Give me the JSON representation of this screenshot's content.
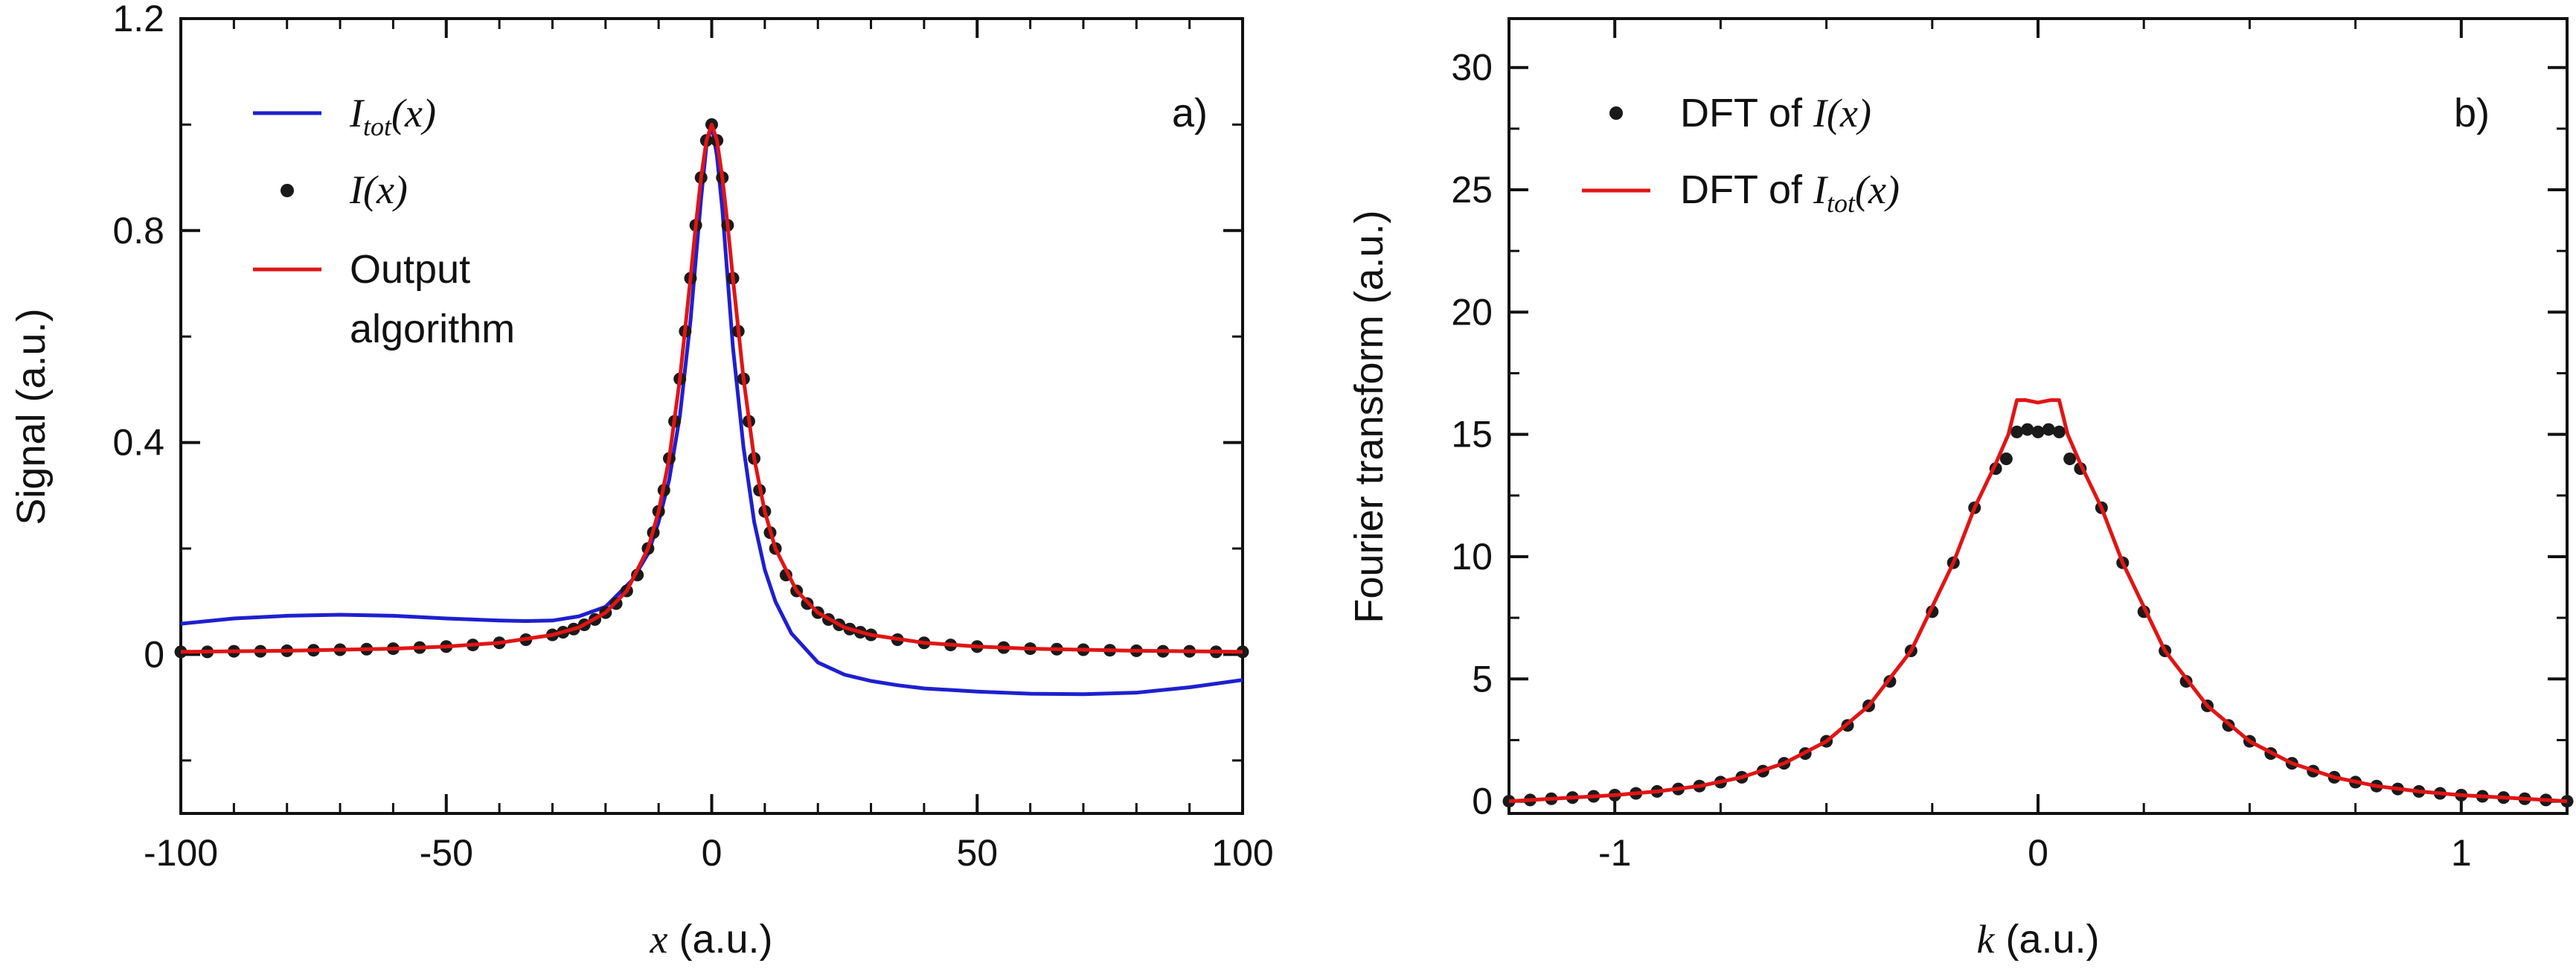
{
  "colors": {
    "blue": "#1f1fd0",
    "red": "#e01515",
    "black": "#1a1a1a"
  },
  "chart_data": [
    {
      "type": "line",
      "panel_label": "a)",
      "ylabel": "Signal (a.u.)",
      "xlabel_var": "x",
      "xlabel_unit": " (a.u.)",
      "xlim": [
        -100,
        100
      ],
      "ylim": [
        -0.3,
        1.2
      ],
      "xticks": [
        -100,
        -50,
        0,
        50,
        100
      ],
      "xtick_labels": [
        "-100",
        "-50",
        "0",
        "50",
        "100"
      ],
      "yticks": [
        0,
        0.4,
        0.8,
        1.2
      ],
      "ytick_labels": [
        "0",
        "0.4",
        "0.8",
        "1.2"
      ],
      "legend": [
        {
          "key": "itot",
          "label_var": "I",
          "label_sub": "tot",
          "label_rest": "(x)",
          "marker": "line",
          "color": "#1f1fd0"
        },
        {
          "key": "ix",
          "label_var": "I",
          "label_rest": "(x)",
          "marker": "dot",
          "color": "#1a1a1a"
        },
        {
          "key": "out",
          "label_line1": "Output",
          "label_line2": "algorithm",
          "marker": "line",
          "color": "#e01515"
        }
      ],
      "series": {
        "itot": {
          "name": "Itot(x)",
          "x": [
            -100,
            -90,
            -80,
            -70,
            -60,
            -50,
            -40,
            -35,
            -30,
            -25,
            -20,
            -15,
            -12,
            -10,
            -8,
            -6,
            -4,
            -2,
            -1,
            0,
            1,
            2,
            4,
            6,
            8,
            10,
            12,
            15,
            20,
            25,
            30,
            35,
            40,
            50,
            60,
            70,
            80,
            90,
            100
          ],
          "y": [
            0.058,
            0.068,
            0.073,
            0.075,
            0.073,
            0.068,
            0.064,
            0.063,
            0.064,
            0.072,
            0.09,
            0.14,
            0.19,
            0.25,
            0.33,
            0.45,
            0.63,
            0.86,
            0.96,
            1.0,
            0.94,
            0.84,
            0.58,
            0.39,
            0.25,
            0.16,
            0.1,
            0.04,
            -0.015,
            -0.038,
            -0.05,
            -0.058,
            -0.064,
            -0.07,
            -0.074,
            -0.075,
            -0.072,
            -0.062,
            -0.048
          ]
        },
        "ix": {
          "name": "I(x)",
          "x": [
            -100,
            -95,
            -90,
            -85,
            -80,
            -75,
            -70,
            -65,
            -60,
            -55,
            -50,
            -45,
            -40,
            -35,
            -30,
            -28,
            -26,
            -24,
            -22,
            -20,
            -18,
            -16,
            -14,
            -12,
            -11,
            -10,
            -9,
            -8,
            -7,
            -6,
            -5,
            -4,
            -3,
            -2,
            -1,
            0,
            1,
            2,
            3,
            4,
            5,
            6,
            7,
            8,
            9,
            10,
            11,
            12,
            14,
            16,
            18,
            20,
            22,
            24,
            26,
            28,
            30,
            35,
            40,
            45,
            50,
            55,
            60,
            65,
            70,
            75,
            80,
            85,
            90,
            95,
            100
          ],
          "y": [
            0.005,
            0.005,
            0.006,
            0.006,
            0.007,
            0.008,
            0.009,
            0.01,
            0.011,
            0.013,
            0.015,
            0.018,
            0.022,
            0.028,
            0.037,
            0.042,
            0.048,
            0.056,
            0.066,
            0.079,
            0.096,
            0.12,
            0.15,
            0.2,
            0.23,
            0.27,
            0.31,
            0.37,
            0.44,
            0.52,
            0.61,
            0.71,
            0.81,
            0.9,
            0.97,
            1.0,
            0.97,
            0.9,
            0.81,
            0.71,
            0.61,
            0.52,
            0.44,
            0.37,
            0.31,
            0.27,
            0.23,
            0.2,
            0.15,
            0.12,
            0.096,
            0.079,
            0.066,
            0.056,
            0.048,
            0.042,
            0.037,
            0.028,
            0.022,
            0.018,
            0.015,
            0.013,
            0.011,
            0.01,
            0.009,
            0.008,
            0.007,
            0.006,
            0.006,
            0.005,
            0.005
          ]
        },
        "out": {
          "name": "Output algorithm",
          "x": [
            -100,
            -80,
            -60,
            -50,
            -40,
            -30,
            -25,
            -20,
            -16,
            -12,
            -10,
            -8,
            -6,
            -4,
            -3,
            -2,
            -1,
            0,
            1,
            2,
            3,
            4,
            6,
            8,
            10,
            12,
            16,
            20,
            25,
            30,
            40,
            50,
            60,
            80,
            100
          ],
          "y": [
            0.005,
            0.007,
            0.011,
            0.015,
            0.022,
            0.037,
            0.051,
            0.079,
            0.12,
            0.2,
            0.27,
            0.37,
            0.52,
            0.71,
            0.81,
            0.9,
            0.97,
            1.0,
            0.97,
            0.9,
            0.81,
            0.71,
            0.52,
            0.37,
            0.27,
            0.2,
            0.12,
            0.079,
            0.051,
            0.037,
            0.022,
            0.015,
            0.011,
            0.007,
            0.005
          ]
        }
      }
    },
    {
      "type": "line",
      "panel_label": "b)",
      "ylabel": "Fourier transform (a.u.)",
      "xlabel_var": "k",
      "xlabel_unit": " (a.u.)",
      "xlim": [
        -1.25,
        1.25
      ],
      "ylim": [
        -0.5,
        32
      ],
      "xticks": [
        -1,
        0,
        1
      ],
      "xtick_labels": [
        "-1",
        "0",
        "1"
      ],
      "yticks": [
        0,
        5,
        10,
        15,
        20,
        25,
        30
      ],
      "ytick_labels": [
        "0",
        "5",
        "10",
        "15",
        "20",
        "25",
        "30"
      ],
      "legend": [
        {
          "key": "dft_i",
          "label_pre": "DFT of ",
          "label_var": "I",
          "label_rest": "(x)",
          "marker": "dot",
          "color": "#1a1a1a"
        },
        {
          "key": "dft_itot",
          "label_pre": "DFT of ",
          "label_var": "I",
          "label_sub": "tot",
          "label_rest": "(x)",
          "marker": "line",
          "color": "#e01515"
        }
      ],
      "series": {
        "dft_i": {
          "name": "DFT of I(x)",
          "x": [
            -1.25,
            -1.2,
            -1.15,
            -1.1,
            -1.05,
            -1.0,
            -0.95,
            -0.9,
            -0.85,
            -0.8,
            -0.75,
            -0.7,
            -0.65,
            -0.6,
            -0.55,
            -0.5,
            -0.45,
            -0.4,
            -0.35,
            -0.3,
            -0.25,
            -0.2,
            -0.15,
            -0.1,
            -0.075,
            -0.05,
            -0.025,
            0,
            0.025,
            0.05,
            0.075,
            0.1,
            0.15,
            0.2,
            0.25,
            0.3,
            0.35,
            0.4,
            0.45,
            0.5,
            0.55,
            0.6,
            0.65,
            0.7,
            0.75,
            0.8,
            0.85,
            0.9,
            0.95,
            1.0,
            1.05,
            1.1,
            1.15,
            1.2,
            1.25
          ],
          "y": [
            0.0,
            0.05,
            0.1,
            0.15,
            0.2,
            0.25,
            0.32,
            0.4,
            0.5,
            0.62,
            0.78,
            0.98,
            1.23,
            1.55,
            1.95,
            2.45,
            3.1,
            3.9,
            4.9,
            6.15,
            7.75,
            9.75,
            12.0,
            13.6,
            14.0,
            15.1,
            15.2,
            15.1,
            15.2,
            15.1,
            14.0,
            13.6,
            12.0,
            9.75,
            7.75,
            6.15,
            4.9,
            3.9,
            3.1,
            2.45,
            1.95,
            1.55,
            1.23,
            0.98,
            0.78,
            0.62,
            0.5,
            0.4,
            0.32,
            0.25,
            0.2,
            0.15,
            0.1,
            0.05,
            0.0
          ]
        },
        "dft_itot": {
          "name": "DFT of Itot(x)",
          "x": [
            -1.25,
            -1.1,
            -1.0,
            -0.9,
            -0.8,
            -0.7,
            -0.6,
            -0.5,
            -0.4,
            -0.3,
            -0.2,
            -0.15,
            -0.1,
            -0.07,
            -0.05,
            -0.03,
            0,
            0.03,
            0.05,
            0.07,
            0.1,
            0.15,
            0.2,
            0.3,
            0.4,
            0.5,
            0.6,
            0.7,
            0.8,
            0.9,
            1.0,
            1.1,
            1.25
          ],
          "y": [
            0.0,
            0.15,
            0.25,
            0.4,
            0.62,
            0.98,
            1.55,
            2.45,
            3.9,
            6.15,
            9.75,
            12.0,
            13.8,
            15.0,
            16.4,
            16.4,
            16.3,
            16.4,
            16.4,
            15.0,
            13.8,
            12.0,
            9.75,
            6.15,
            3.9,
            2.45,
            1.55,
            0.98,
            0.62,
            0.4,
            0.25,
            0.15,
            0.0
          ]
        }
      }
    }
  ]
}
